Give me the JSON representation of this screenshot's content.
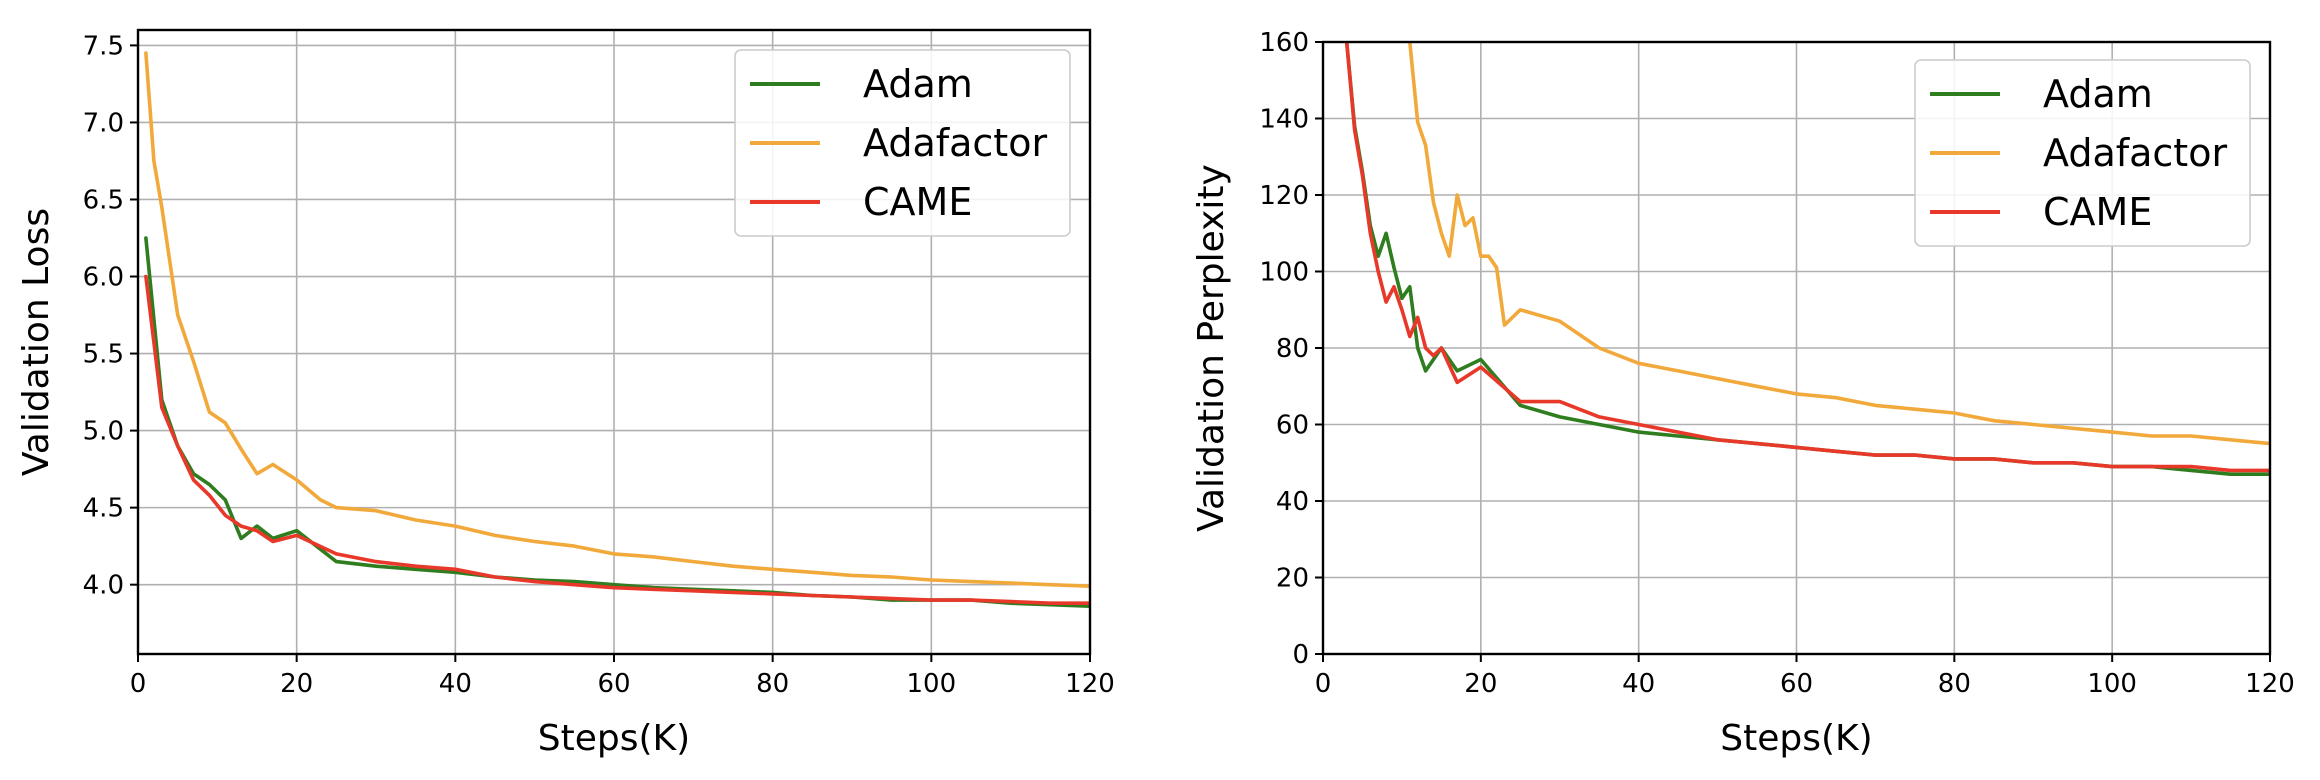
{
  "colors": {
    "Adam": "#2e7d1f",
    "Adafactor": "#f2a93b",
    "CAME": "#e8382a"
  },
  "chart_data": [
    {
      "type": "line",
      "xlabel": "Steps(K)",
      "ylabel": "Validation Loss",
      "xlim": [
        0,
        120
      ],
      "ylim": [
        3.55,
        7.6
      ],
      "xticks": [
        0,
        20,
        40,
        60,
        80,
        100,
        120
      ],
      "xtick_labels": [
        "0",
        "20",
        "40",
        "60",
        "80",
        "100",
        "120"
      ],
      "yticks": [
        4.0,
        4.5,
        5.0,
        5.5,
        6.0,
        6.5,
        7.0,
        7.5
      ],
      "ytick_labels": [
        "4.0",
        "4.5",
        "5.0",
        "5.5",
        "6.0",
        "6.5",
        "7.0",
        "7.5"
      ],
      "grid": true,
      "legend_position": "upper-right",
      "series": [
        {
          "name": "Adam",
          "x": [
            1,
            3,
            5,
            7,
            9,
            11,
            13,
            15,
            17,
            20,
            25,
            30,
            35,
            40,
            45,
            50,
            55,
            60,
            65,
            70,
            75,
            80,
            85,
            90,
            95,
            100,
            105,
            110,
            115,
            120
          ],
          "y": [
            6.25,
            5.2,
            4.9,
            4.72,
            4.65,
            4.55,
            4.3,
            4.38,
            4.3,
            4.35,
            4.15,
            4.12,
            4.1,
            4.08,
            4.05,
            4.03,
            4.02,
            4.0,
            3.98,
            3.97,
            3.96,
            3.95,
            3.93,
            3.92,
            3.9,
            3.9,
            3.9,
            3.88,
            3.87,
            3.86
          ]
        },
        {
          "name": "Adafactor",
          "x": [
            1,
            2,
            3,
            5,
            7,
            9,
            11,
            13,
            15,
            17,
            20,
            23,
            25,
            30,
            35,
            40,
            45,
            50,
            55,
            60,
            65,
            70,
            75,
            80,
            85,
            90,
            95,
            100,
            105,
            110,
            115,
            120
          ],
          "y": [
            7.45,
            6.75,
            6.45,
            5.75,
            5.45,
            5.12,
            5.05,
            4.88,
            4.72,
            4.78,
            4.68,
            4.55,
            4.5,
            4.48,
            4.42,
            4.38,
            4.32,
            4.28,
            4.25,
            4.2,
            4.18,
            4.15,
            4.12,
            4.1,
            4.08,
            4.06,
            4.05,
            4.03,
            4.02,
            4.01,
            4.0,
            3.99
          ]
        },
        {
          "name": "CAME",
          "x": [
            1,
            3,
            5,
            7,
            9,
            11,
            13,
            15,
            17,
            20,
            25,
            30,
            35,
            40,
            45,
            50,
            55,
            60,
            65,
            70,
            75,
            80,
            85,
            90,
            95,
            100,
            105,
            110,
            115,
            120
          ],
          "y": [
            6.0,
            5.15,
            4.9,
            4.68,
            4.58,
            4.45,
            4.38,
            4.35,
            4.28,
            4.32,
            4.2,
            4.15,
            4.12,
            4.1,
            4.05,
            4.02,
            4.0,
            3.98,
            3.97,
            3.96,
            3.95,
            3.94,
            3.93,
            3.92,
            3.91,
            3.9,
            3.9,
            3.89,
            3.88,
            3.88
          ]
        }
      ]
    },
    {
      "type": "line",
      "xlabel": "Steps(K)",
      "ylabel": "Validation Perplexity",
      "xlim": [
        0,
        120
      ],
      "ylim": [
        0,
        160
      ],
      "xticks": [
        0,
        20,
        40,
        60,
        80,
        100,
        120
      ],
      "xtick_labels": [
        "0",
        "20",
        "40",
        "60",
        "80",
        "100",
        "120"
      ],
      "yticks": [
        0,
        20,
        40,
        60,
        80,
        100,
        120,
        140,
        160
      ],
      "ytick_labels": [
        "0",
        "20",
        "40",
        "60",
        "80",
        "100",
        "120",
        "140",
        "160"
      ],
      "grid": true,
      "legend_position": "upper-right",
      "series": [
        {
          "name": "Adam",
          "x": [
            3,
            4,
            5,
            6,
            7,
            8,
            9,
            10,
            11,
            12,
            13,
            15,
            17,
            20,
            25,
            30,
            35,
            40,
            45,
            50,
            55,
            60,
            65,
            70,
            75,
            80,
            85,
            90,
            95,
            100,
            105,
            110,
            115,
            120
          ],
          "y": [
            160,
            138,
            126,
            112,
            104,
            110,
            101,
            93,
            96,
            80,
            74,
            80,
            74,
            77,
            65,
            62,
            60,
            58,
            57,
            56,
            55,
            54,
            53,
            52,
            52,
            51,
            51,
            50,
            50,
            49,
            49,
            48,
            47,
            47
          ]
        },
        {
          "name": "Adafactor",
          "x": [
            11,
            12,
            13,
            14,
            15,
            16,
            17,
            18,
            19,
            20,
            21,
            22,
            23,
            25,
            30,
            35,
            40,
            45,
            50,
            55,
            60,
            65,
            70,
            75,
            80,
            85,
            90,
            95,
            100,
            105,
            110,
            115,
            120
          ],
          "y": [
            160,
            139,
            133,
            118,
            110,
            104,
            120,
            112,
            114,
            104,
            104,
            101,
            86,
            90,
            87,
            80,
            76,
            74,
            72,
            70,
            68,
            67,
            65,
            64,
            63,
            61,
            60,
            59,
            58,
            57,
            57,
            56,
            55
          ]
        },
        {
          "name": "CAME",
          "x": [
            3,
            4,
            5,
            6,
            7,
            8,
            9,
            10,
            11,
            12,
            13,
            14,
            15,
            17,
            20,
            25,
            30,
            35,
            40,
            45,
            50,
            55,
            60,
            65,
            70,
            75,
            80,
            85,
            90,
            95,
            100,
            105,
            110,
            115,
            120
          ],
          "y": [
            160,
            137,
            125,
            110,
            100,
            92,
            96,
            90,
            83,
            88,
            80,
            78,
            80,
            71,
            75,
            66,
            66,
            62,
            60,
            58,
            56,
            55,
            54,
            53,
            52,
            52,
            51,
            51,
            50,
            50,
            49,
            49,
            49,
            48,
            48
          ]
        }
      ]
    }
  ]
}
